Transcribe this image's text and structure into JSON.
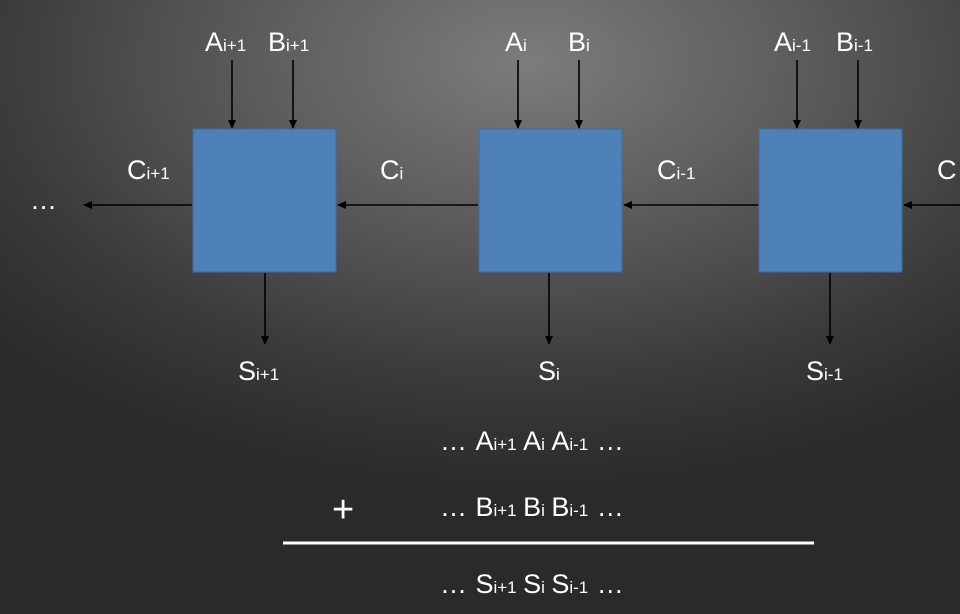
{
  "diagram": {
    "left_ellipsis": "…",
    "cells": [
      {
        "a": {
          "base": "A",
          "sub": "i+1"
        },
        "b": {
          "base": "B",
          "sub": "i+1"
        },
        "carry_out": {
          "base": "C",
          "sub": "i+1"
        },
        "sum": {
          "base": "S",
          "sub": "i+1"
        }
      },
      {
        "a": {
          "base": "A",
          "sub": "i"
        },
        "b": {
          "base": "B",
          "sub": "i"
        },
        "carry_out": {
          "base": "C",
          "sub": "i"
        },
        "sum": {
          "base": "S",
          "sub": "i"
        }
      },
      {
        "a": {
          "base": "A",
          "sub": "i-1"
        },
        "b": {
          "base": "B",
          "sub": "i-1"
        },
        "carry_out": {
          "base": "C",
          "sub": "i-1"
        },
        "sum": {
          "base": "S",
          "sub": "i-1"
        }
      }
    ],
    "right_carry": "C"
  },
  "equation": {
    "row_a": {
      "lead": "…",
      "terms": [
        {
          "base": "A",
          "sub": "i+1"
        },
        {
          "base": "A",
          "sub": "i"
        },
        {
          "base": "A",
          "sub": "i-1"
        }
      ],
      "trail": "…"
    },
    "row_b": {
      "lead": "…",
      "terms": [
        {
          "base": "B",
          "sub": "i+1"
        },
        {
          "base": "B",
          "sub": "i"
        },
        {
          "base": "B",
          "sub": "i-1"
        }
      ],
      "trail": "…"
    },
    "plus": "+",
    "row_s": {
      "lead": "…",
      "terms": [
        {
          "base": "S",
          "sub": "i+1"
        },
        {
          "base": "S",
          "sub": "i"
        },
        {
          "base": "S",
          "sub": "i-1"
        }
      ],
      "trail": "…"
    }
  }
}
